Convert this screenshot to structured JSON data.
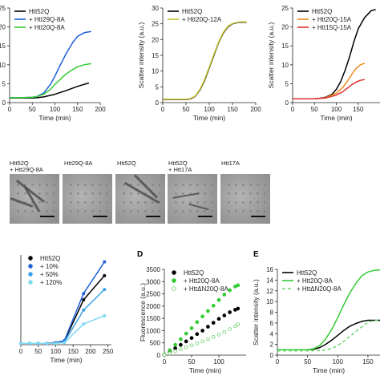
{
  "figure": {
    "panel_labels": [
      "D",
      "E"
    ]
  },
  "em_panel": {
    "captions": [
      "Htt52Q\n+ Htt29Q-8A",
      "Htt29Q-8A",
      "Htt52Q",
      "Htt52Q\n+ Htt17A",
      "Htt17A"
    ]
  },
  "chart_data": [
    {
      "id": "A1",
      "type": "line",
      "xlabel": "Time (min)",
      "ylabel": "",
      "xlim": [
        0,
        200
      ],
      "ylim": [
        0,
        25
      ],
      "xticks": [
        0,
        50,
        100,
        150,
        200
      ],
      "yticks": [
        0,
        5,
        10,
        15,
        20,
        25
      ],
      "legend": "top-left",
      "series": [
        {
          "name": "Htt52Q",
          "color": "#000000",
          "x": [
            0,
            25,
            50,
            60,
            75,
            100,
            125,
            150,
            175
          ],
          "y": [
            1.2,
            1.2,
            1.2,
            1.3,
            1.5,
            2.2,
            3.2,
            4.3,
            5.2
          ]
        },
        {
          "name": "+ Htt29Q-8A",
          "color": "#1f5fd6",
          "x": [
            0,
            25,
            50,
            60,
            75,
            90,
            100,
            110,
            125,
            140,
            150,
            165,
            180
          ],
          "y": [
            1.3,
            1.3,
            1.4,
            1.6,
            2.5,
            4.8,
            7.0,
            9.5,
            13.0,
            16.0,
            17.5,
            18.5,
            18.8
          ]
        },
        {
          "name": "+ Htt20Q-8A",
          "color": "#33cc33",
          "x": [
            0,
            25,
            50,
            60,
            75,
            90,
            100,
            115,
            125,
            140,
            150,
            165,
            180
          ],
          "y": [
            1.3,
            1.3,
            1.4,
            1.6,
            2.2,
            3.5,
            4.8,
            6.5,
            7.6,
            8.8,
            9.5,
            10.0,
            10.3
          ]
        }
      ]
    },
    {
      "id": "A2",
      "type": "line",
      "xlabel": "Time (min)",
      "ylabel": "Scatter intensity (a.u.)",
      "xlim": [
        0,
        200
      ],
      "ylim": [
        0,
        30
      ],
      "xticks": [
        0,
        50,
        100,
        150,
        200
      ],
      "yticks": [
        0,
        5,
        10,
        15,
        20,
        25,
        30
      ],
      "legend": "top-left",
      "series": [
        {
          "name": "Htt52Q",
          "color": "#000000",
          "x": [
            0,
            25,
            50,
            60,
            70,
            80,
            90,
            100,
            110,
            120,
            130,
            140,
            150,
            165,
            180
          ],
          "y": [
            1.0,
            1.0,
            1.0,
            1.2,
            2.0,
            4.0,
            7.0,
            11.0,
            15.0,
            19.0,
            22.0,
            24.0,
            25.0,
            25.5,
            25.5
          ]
        },
        {
          "name": "+ Htt20Q-12A",
          "color": "#c9c334",
          "x": [
            0,
            25,
            50,
            60,
            70,
            80,
            90,
            100,
            110,
            120,
            130,
            140,
            150,
            165,
            180
          ],
          "y": [
            1.1,
            1.1,
            1.1,
            1.3,
            2.1,
            4.2,
            7.3,
            11.3,
            15.3,
            19.2,
            22.2,
            24.2,
            25.1,
            25.6,
            25.6
          ]
        }
      ]
    },
    {
      "id": "A3",
      "type": "line",
      "xlabel": "Time (min)",
      "ylabel": "Scatter intensity (a.u.)",
      "xlim": [
        0,
        200
      ],
      "ylim": [
        0,
        25
      ],
      "xticks": [
        0,
        50,
        100,
        150
      ],
      "yticks": [
        0,
        5,
        10,
        15,
        20,
        25
      ],
      "legend": "top-left",
      "series": [
        {
          "name": "Htt52Q",
          "color": "#000000",
          "x": [
            0,
            25,
            50,
            60,
            75,
            90,
            100,
            110,
            120,
            130,
            140,
            150,
            165,
            180,
            190
          ],
          "y": [
            1.0,
            1.0,
            1.0,
            1.1,
            1.4,
            2.2,
            3.5,
            5.5,
            8.5,
            12.0,
            16.0,
            19.5,
            22.5,
            24.3,
            24.6
          ]
        },
        {
          "name": "+ Htt20Q-15A",
          "color": "#f08a1c",
          "x": [
            0,
            25,
            50,
            75,
            100,
            115,
            125,
            135,
            145,
            155,
            165
          ],
          "y": [
            1.0,
            1.0,
            1.0,
            1.3,
            2.5,
            4.0,
            5.6,
            7.4,
            9.0,
            10.0,
            10.4
          ]
        },
        {
          "name": "+ Htt15Q-15A",
          "color": "#e03030",
          "x": [
            0,
            25,
            50,
            75,
            100,
            115,
            125,
            135,
            145,
            155,
            165
          ],
          "y": [
            1.0,
            1.0,
            1.0,
            1.2,
            2.0,
            2.9,
            3.8,
            4.7,
            5.4,
            5.9,
            6.1
          ]
        }
      ]
    },
    {
      "id": "C",
      "type": "line",
      "xlabel": "Time (min)",
      "ylabel": "",
      "xlim": [
        0,
        260
      ],
      "ylim": [
        0,
        1.3
      ],
      "xticks": [
        0,
        50,
        100,
        150,
        200,
        250
      ],
      "yticks": [],
      "legend": "top-left",
      "series": [
        {
          "name": "Htt52Q",
          "color": "#000000",
          "x": [
            0,
            25,
            50,
            75,
            100,
            125,
            180,
            240
          ],
          "y": [
            0.02,
            0.02,
            0.02,
            0.02,
            0.03,
            0.05,
            0.65,
            1.0
          ]
        },
        {
          "name": "+ 10%",
          "color": "#1f5fd6",
          "x": [
            0,
            25,
            50,
            75,
            100,
            125,
            180,
            240
          ],
          "y": [
            0.02,
            0.02,
            0.02,
            0.02,
            0.03,
            0.06,
            0.74,
            1.2
          ]
        },
        {
          "name": "+ 50%",
          "color": "#3aa0e6",
          "x": [
            0,
            25,
            50,
            75,
            100,
            125,
            180,
            240
          ],
          "y": [
            0.02,
            0.02,
            0.02,
            0.02,
            0.02,
            0.04,
            0.5,
            0.8
          ]
        },
        {
          "name": "+ 120%",
          "color": "#7fd8f0",
          "x": [
            0,
            25,
            50,
            75,
            100,
            125,
            180,
            240
          ],
          "y": [
            0.02,
            0.02,
            0.02,
            0.02,
            0.02,
            0.03,
            0.3,
            0.42
          ]
        }
      ]
    },
    {
      "id": "D",
      "type": "scatter",
      "xlabel": "Time (min)",
      "ylabel": "Fluorescence (a.u.)",
      "xlim": [
        0,
        150
      ],
      "ylim": [
        0,
        3500
      ],
      "xticks": [
        0,
        50,
        100
      ],
      "yticks": [
        0,
        500,
        1000,
        1500,
        2000,
        2500,
        3000,
        3500
      ],
      "legend": "top-left",
      "series": [
        {
          "name": "Htt52Q",
          "color": "#000000",
          "marker": "filled",
          "x": [
            0,
            10,
            20,
            30,
            40,
            50,
            60,
            70,
            80,
            90,
            100,
            110,
            120,
            130,
            135
          ],
          "y": [
            20,
            120,
            280,
            420,
            560,
            700,
            860,
            1000,
            1160,
            1320,
            1480,
            1620,
            1750,
            1850,
            1900
          ]
        },
        {
          "name": "+ Htt20Q-8A",
          "color": "#33cc33",
          "marker": "filled",
          "x": [
            0,
            10,
            20,
            30,
            40,
            50,
            60,
            70,
            80,
            90,
            100,
            110,
            120,
            130,
            135
          ],
          "y": [
            30,
            200,
            420,
            650,
            880,
            1100,
            1350,
            1580,
            1800,
            2020,
            2250,
            2470,
            2650,
            2800,
            2850
          ]
        },
        {
          "name": "+ HttΔN20Q-8A",
          "color": "#7cd67c",
          "marker": "open",
          "x": [
            0,
            10,
            20,
            30,
            40,
            50,
            60,
            70,
            80,
            90,
            100,
            110,
            120,
            130,
            135
          ],
          "y": [
            10,
            70,
            160,
            240,
            320,
            400,
            480,
            560,
            650,
            740,
            840,
            940,
            1060,
            1180,
            1260
          ]
        }
      ]
    },
    {
      "id": "E",
      "type": "line",
      "xlabel": "Time (min)",
      "ylabel": "Scatter intensity (a.u.)",
      "xlim": [
        0,
        170
      ],
      "ylim": [
        0,
        16
      ],
      "xticks": [
        0,
        50,
        100,
        150
      ],
      "yticks": [
        0,
        2,
        4,
        6,
        8,
        10,
        12,
        14,
        16
      ],
      "legend": "top-left",
      "series": [
        {
          "name": "Htt52Q",
          "color": "#000000",
          "dash": "",
          "x": [
            0,
            25,
            50,
            60,
            70,
            80,
            90,
            100,
            110,
            120,
            130,
            140,
            150,
            160,
            170
          ],
          "y": [
            1.0,
            1.0,
            1.0,
            1.1,
            1.4,
            2.0,
            2.8,
            3.7,
            4.6,
            5.4,
            5.9,
            6.3,
            6.5,
            6.5,
            6.5
          ]
        },
        {
          "name": "+ Htt20Q-8A",
          "color": "#33cc33",
          "dash": "",
          "x": [
            0,
            25,
            50,
            60,
            70,
            80,
            90,
            100,
            110,
            120,
            130,
            140,
            150,
            160,
            170
          ],
          "y": [
            1.0,
            1.0,
            1.0,
            1.2,
            1.8,
            3.0,
            4.8,
            7.0,
            9.4,
            11.6,
            13.4,
            14.8,
            15.5,
            15.8,
            15.9
          ]
        },
        {
          "name": "+ HttΔN20Q-8A",
          "color": "#6fd86f",
          "dash": "4,3",
          "x": [
            0,
            25,
            50,
            75,
            90,
            100,
            110,
            120,
            130,
            140,
            150,
            160,
            170
          ],
          "y": [
            0.8,
            0.8,
            0.8,
            0.9,
            1.2,
            1.8,
            2.6,
            3.5,
            4.4,
            5.3,
            6.1,
            6.5,
            6.6
          ]
        }
      ]
    }
  ]
}
